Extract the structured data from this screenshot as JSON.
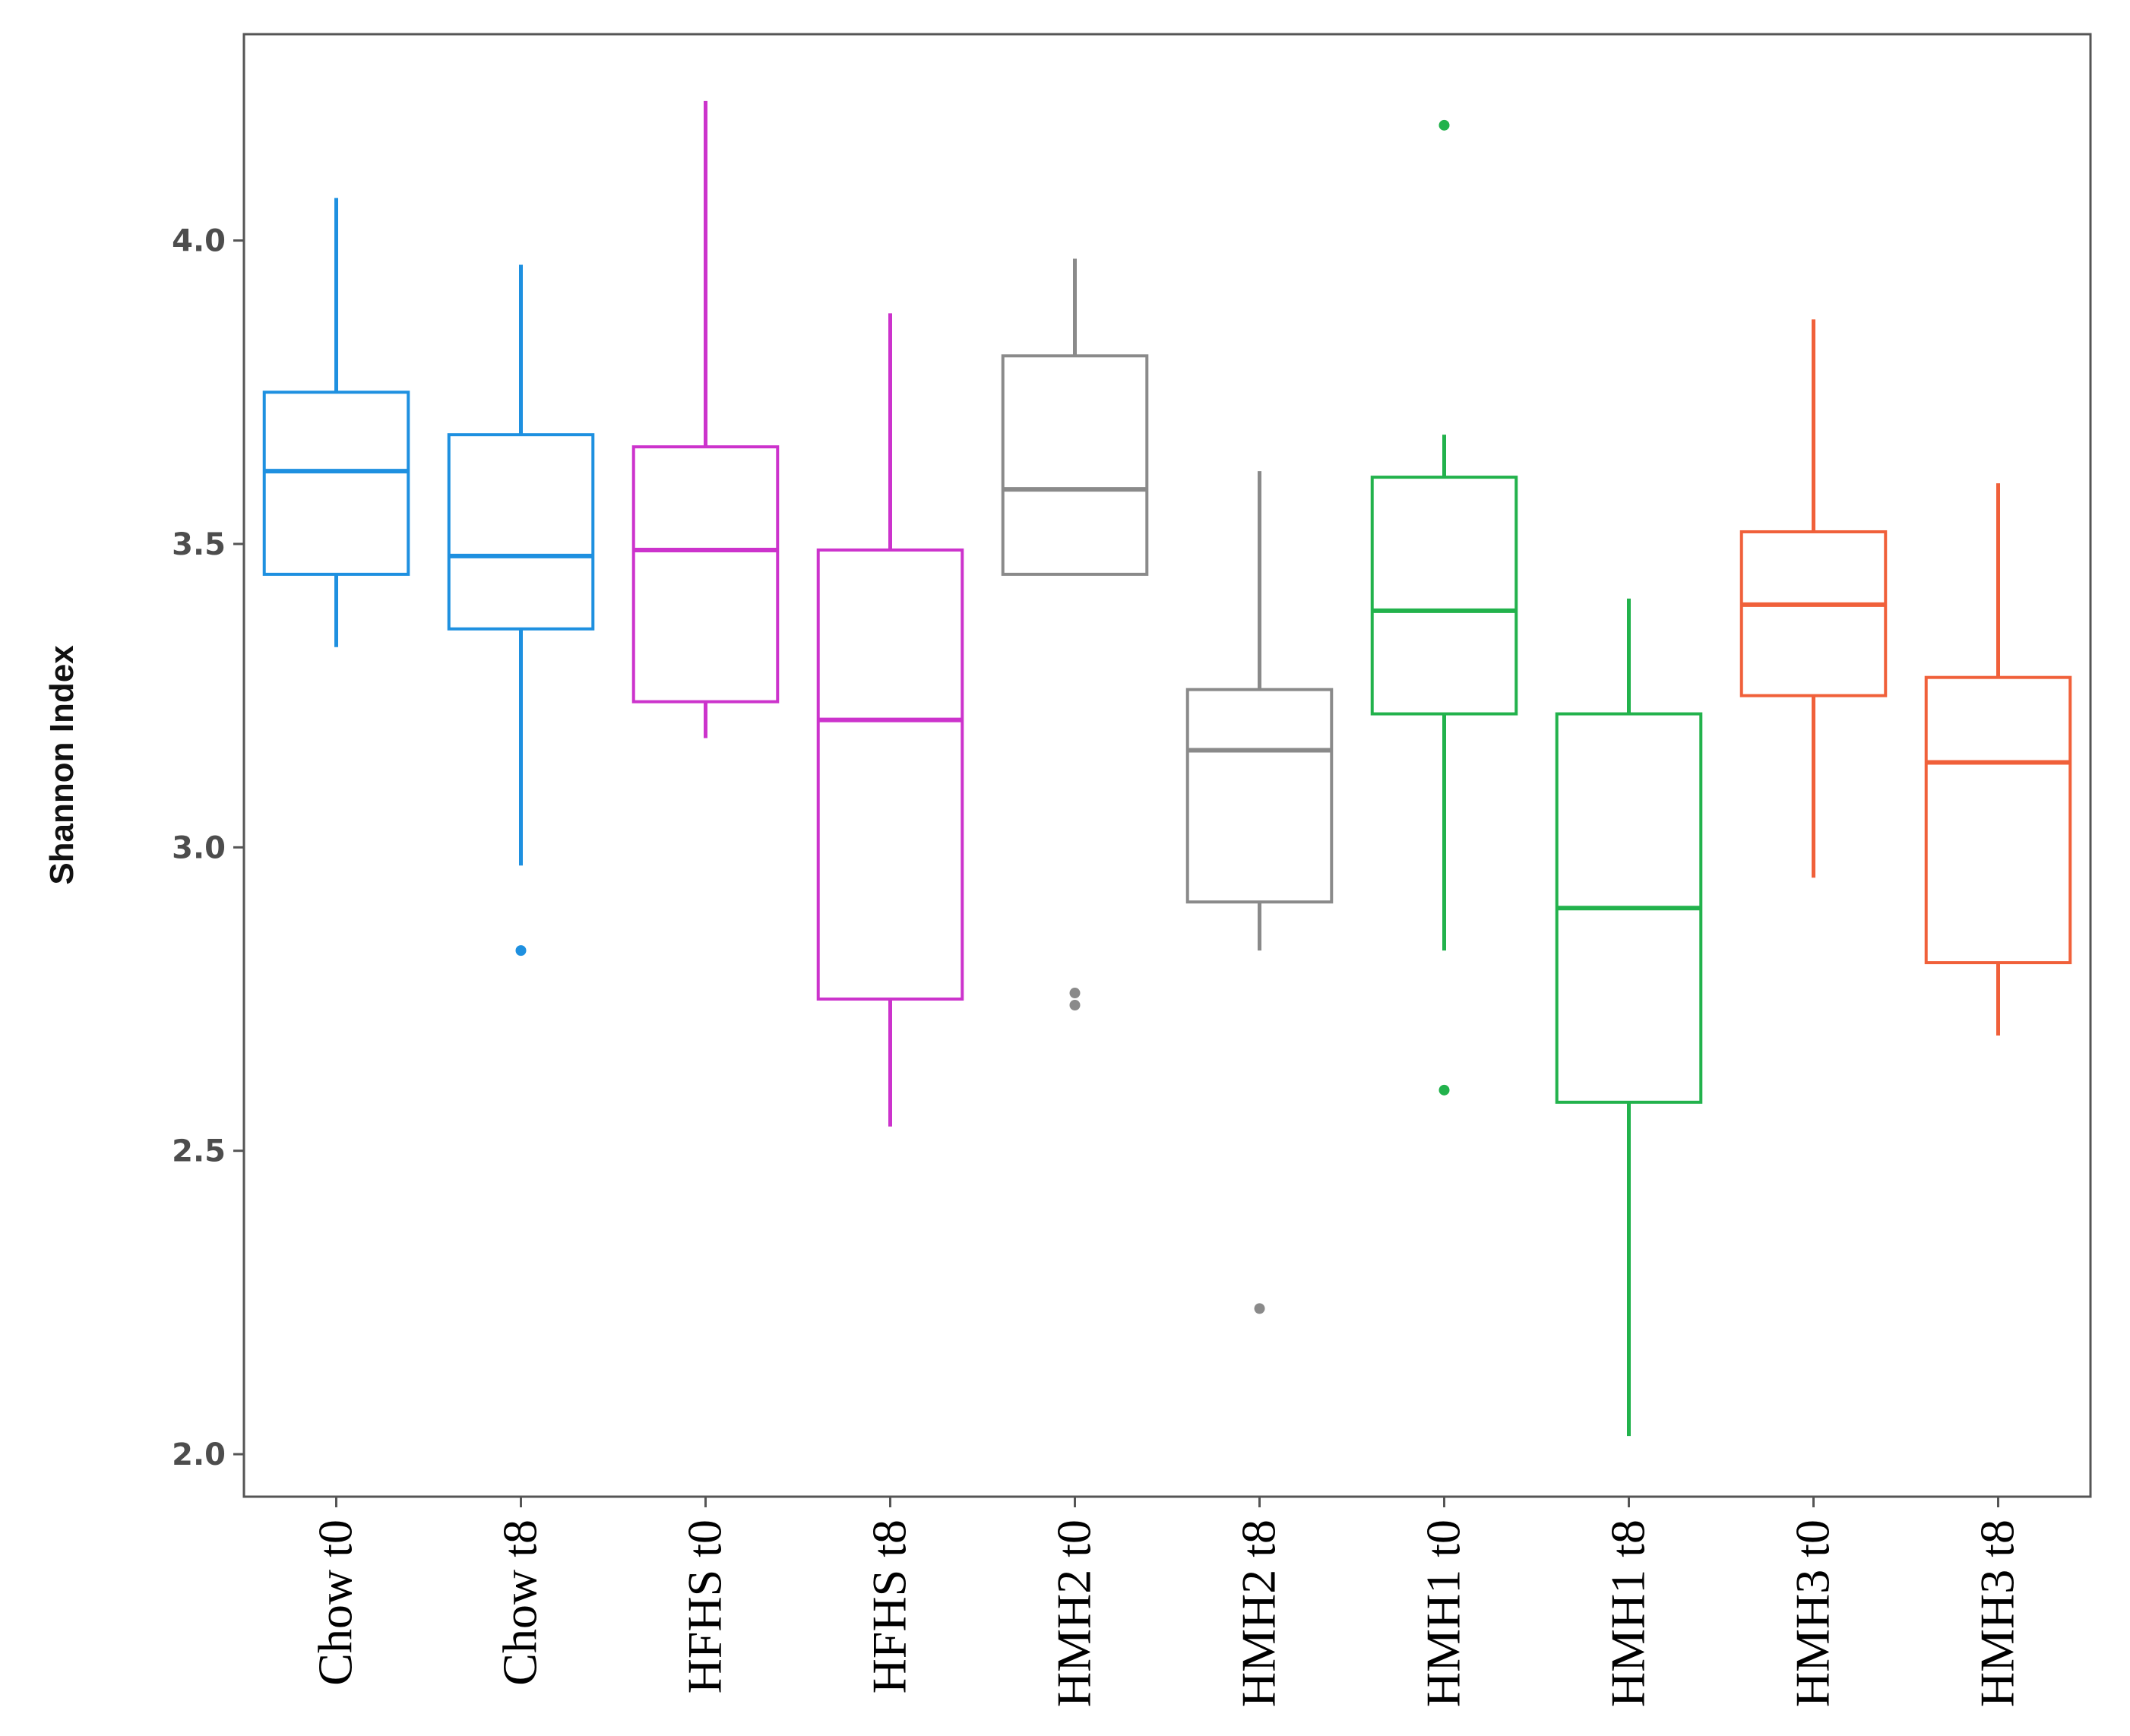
{
  "chart_data": {
    "type": "boxplot",
    "title": "",
    "xlabel": "",
    "ylabel": "Shannon Index",
    "ylim": [
      1.93,
      4.34
    ],
    "yticks": [
      "2.0",
      "2.5",
      "3.0",
      "3.5",
      "4.0"
    ],
    "grid": false,
    "legend": "none",
    "categories": [
      "Chow t0",
      "Chow t8",
      "HFHS t0",
      "HFHS t8",
      "HMH2 t0",
      "HMH2 t8",
      "HMH1 t0",
      "HMH1 t8",
      "HMH3 t0",
      "HMH3 t8"
    ],
    "colors": [
      "#1e90e0",
      "#1e90e0",
      "#cc33cc",
      "#cc33cc",
      "#8a8a8a",
      "#8a8a8a",
      "#22b24c",
      "#22b24c",
      "#f0603a",
      "#f0603a"
    ],
    "boxes": [
      {
        "whisker_low": 3.33,
        "q1": 3.45,
        "median": 3.62,
        "q3": 3.75,
        "whisker_high": 4.07,
        "outliers": []
      },
      {
        "whisker_low": 2.97,
        "q1": 3.36,
        "median": 3.48,
        "q3": 3.68,
        "whisker_high": 3.96,
        "outliers": [
          2.83
        ]
      },
      {
        "whisker_low": 3.18,
        "q1": 3.24,
        "median": 3.49,
        "q3": 3.66,
        "whisker_high": 4.23,
        "outliers": []
      },
      {
        "whisker_low": 2.54,
        "q1": 2.75,
        "median": 3.21,
        "q3": 3.49,
        "whisker_high": 3.88,
        "outliers": []
      },
      {
        "whisker_low": 3.45,
        "q1": 3.45,
        "median": 3.59,
        "q3": 3.81,
        "whisker_high": 3.97,
        "outliers": [
          2.74,
          2.76
        ]
      },
      {
        "whisker_low": 2.83,
        "q1": 2.91,
        "median": 3.16,
        "q3": 3.26,
        "whisker_high": 3.62,
        "outliers": [
          2.24
        ]
      },
      {
        "whisker_low": 2.83,
        "q1": 3.22,
        "median": 3.39,
        "q3": 3.61,
        "whisker_high": 3.68,
        "outliers": [
          2.6,
          4.19
        ]
      },
      {
        "whisker_low": 2.03,
        "q1": 2.58,
        "median": 2.9,
        "q3": 3.22,
        "whisker_high": 3.41,
        "outliers": []
      },
      {
        "whisker_low": 2.95,
        "q1": 3.25,
        "median": 3.4,
        "q3": 3.52,
        "whisker_high": 3.87,
        "outliers": []
      },
      {
        "whisker_low": 2.69,
        "q1": 2.81,
        "median": 3.14,
        "q3": 3.28,
        "whisker_high": 3.6,
        "outliers": []
      }
    ]
  }
}
